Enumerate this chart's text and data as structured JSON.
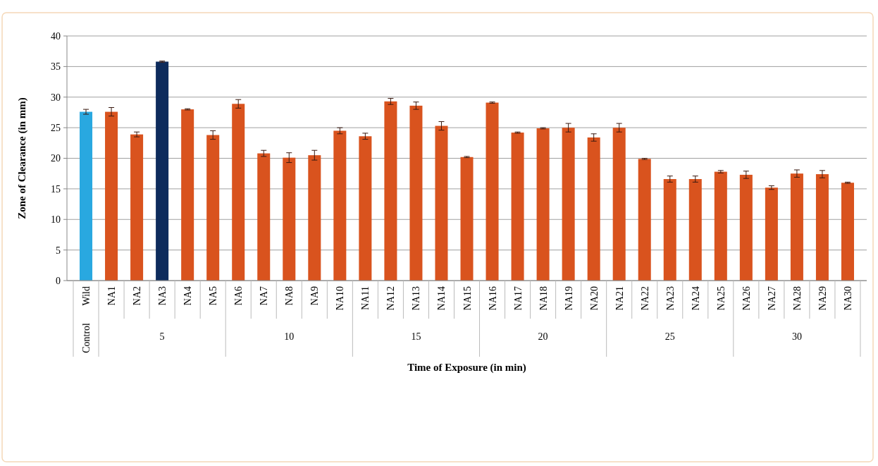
{
  "chart_data": {
    "type": "bar",
    "xlabel": "Time of Exposure (in min)",
    "ylabel": "Zone of Clearance (in mm)",
    "categories": [
      "Wild",
      "NA1",
      "NA2",
      "NA3",
      "NA4",
      "NA5",
      "NA6",
      "NA7",
      "NA8",
      "NA9",
      "NA10",
      "NA11",
      "NA12",
      "NA13",
      "NA14",
      "NA15",
      "NA16",
      "NA17",
      "NA18",
      "NA19",
      "NA20",
      "NA21",
      "NA22",
      "NA23",
      "NA24",
      "NA25",
      "NA26",
      "NA27",
      "NA28",
      "NA29",
      "NA30"
    ],
    "values": [
      27.6,
      27.6,
      23.9,
      35.8,
      28.0,
      23.8,
      28.9,
      20.8,
      20.1,
      20.5,
      24.5,
      23.6,
      29.3,
      28.6,
      25.3,
      20.2,
      29.1,
      24.2,
      24.9,
      25.0,
      23.4,
      25.0,
      19.9,
      16.6,
      16.6,
      17.8,
      17.3,
      15.2,
      17.5,
      17.4,
      16.0
    ],
    "errors": [
      0.4,
      0.7,
      0.4,
      0.1,
      0.1,
      0.7,
      0.7,
      0.5,
      0.8,
      0.8,
      0.5,
      0.5,
      0.5,
      0.6,
      0.7,
      0.1,
      0.1,
      0.1,
      0.1,
      0.7,
      0.6,
      0.7,
      0.1,
      0.5,
      0.5,
      0.2,
      0.6,
      0.3,
      0.6,
      0.6,
      0.1
    ],
    "colors": [
      "#29a8e0",
      "#d9531e",
      "#d9531e",
      "#0d2b5c",
      "#d9531e",
      "#d9531e",
      "#d9531e",
      "#d9531e",
      "#d9531e",
      "#d9531e",
      "#d9531e",
      "#d9531e",
      "#d9531e",
      "#d9531e",
      "#d9531e",
      "#d9531e",
      "#d9531e",
      "#d9531e",
      "#d9531e",
      "#d9531e",
      "#d9531e",
      "#d9531e",
      "#d9531e",
      "#d9531e",
      "#d9531e",
      "#d9531e",
      "#d9531e",
      "#d9531e",
      "#d9531e",
      "#d9531e",
      "#d9531e"
    ],
    "ylim": [
      0,
      40
    ],
    "yticks": [
      0,
      5,
      10,
      15,
      20,
      25,
      30,
      35,
      40
    ],
    "grid": "y",
    "annotations": [
      "Control",
      "5",
      "10",
      "15",
      "20",
      "25",
      "30"
    ]
  }
}
